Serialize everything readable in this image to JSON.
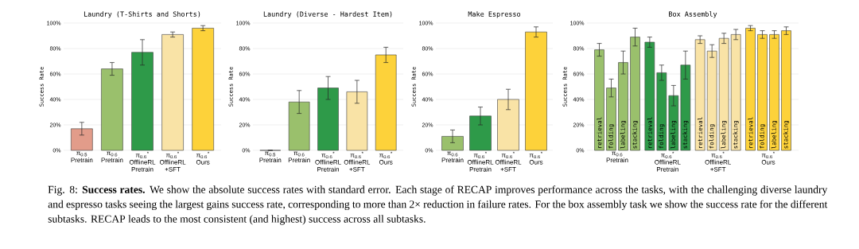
{
  "chart_data": [
    {
      "type": "bar",
      "title": "Laundry (T-Shirts and Shorts)",
      "ylabel": "Success Rate",
      "categories": [
        "π$_{0.5}$ Pretrain",
        "π$_{0.6}$ Pretrain",
        "π$_{0.6}$$^{*}$ OfflineRL Pretrain",
        "π$_{0.6}$$^{*}$ OfflineRL +SFT",
        "π$_{0.6}$$^{*}$ Ours"
      ],
      "values": [
        17,
        64,
        77,
        91,
        96
      ],
      "errors": [
        5,
        5,
        10,
        2,
        2
      ],
      "colors": [
        "#e29c8a",
        "#9ac06c",
        "#2e9a49",
        "#f9e3a6",
        "#fdd23a"
      ],
      "ylim": [
        0,
        100
      ],
      "yticks": [
        {
          "value": 0,
          "label": "0%"
        },
        {
          "value": 20,
          "label": "20%"
        },
        {
          "value": 40,
          "label": "40%"
        },
        {
          "value": 60,
          "label": "60%"
        },
        {
          "value": 80,
          "label": "80%"
        },
        {
          "value": 100,
          "label": "100%"
        }
      ],
      "grid": "y"
    },
    {
      "type": "bar",
      "title": "Laundry (Diverse - Hardest Item)",
      "ylabel": "Success Rate",
      "categories": [
        "π$_{0.5}$ Pretrain",
        "π$_{0.6}$ Pretrain",
        "π$_{0.6}$$^{*}$ OfflineRL Pretrain",
        "π$_{0.6}$$^{*}$ OfflineRL +SFT",
        "π$_{0.6}$$^{*}$ Ours"
      ],
      "values": [
        0,
        38,
        49,
        46,
        75
      ],
      "errors": [
        0,
        9,
        9,
        9,
        6
      ],
      "colors": [
        "#e29c8a",
        "#9ac06c",
        "#2e9a49",
        "#f9e3a6",
        "#fdd23a"
      ],
      "ylim": [
        0,
        100
      ],
      "yticks": [
        {
          "value": 0,
          "label": "0%"
        },
        {
          "value": 20,
          "label": "20%"
        },
        {
          "value": 40,
          "label": "40%"
        },
        {
          "value": 60,
          "label": "60%"
        },
        {
          "value": 80,
          "label": "80%"
        },
        {
          "value": 100,
          "label": "100%"
        }
      ],
      "grid": "y"
    },
    {
      "type": "bar",
      "title": "Make Espresso",
      "ylabel": "Success Rate",
      "categories": [
        "π$_{0.6}$ Pretrain",
        "π$_{0.6}$$^{*}$ OfflineRL Pretrain",
        "π$_{0.6}$$^{*}$ OfflineRL +SFT",
        "π$_{0.6}$$^{*}$ Ours"
      ],
      "values": [
        11,
        27,
        40,
        93
      ],
      "errors": [
        5,
        7,
        8,
        4
      ],
      "colors": [
        "#9ac06c",
        "#2e9a49",
        "#f9e3a6",
        "#fdd23a"
      ],
      "ylim": [
        0,
        100
      ],
      "yticks": [
        {
          "value": 0,
          "label": "0%"
        },
        {
          "value": 20,
          "label": "20%"
        },
        {
          "value": 40,
          "label": "40%"
        },
        {
          "value": 60,
          "label": "60%"
        },
        {
          "value": 80,
          "label": "80%"
        },
        {
          "value": 100,
          "label": "100%"
        }
      ],
      "grid": "y"
    },
    {
      "type": "bar",
      "title": "Box Assembly",
      "ylabel": "Success Rate",
      "categories": [
        "π$_{0.6}$ Pretrain",
        "π$_{0.6}$$^{*}$ OfflineRL Pretrain",
        "π$_{0.6}$$^{*}$ OfflineRL +SFT",
        "π$_{0.6}$$^{*}$ Ours"
      ],
      "series": [
        {
          "name": "retrieval",
          "colors": [
            "#9ac06c",
            "#2e9a49",
            "#f9e3a6",
            "#fdd23a"
          ],
          "values": [
            79,
            85,
            87,
            96
          ],
          "errors": [
            5,
            4,
            3,
            2
          ]
        },
        {
          "name": "folding",
          "colors": [
            "#9ac06c",
            "#2e9a49",
            "#f9e3a6",
            "#fdd23a"
          ],
          "values": [
            49,
            61,
            78,
            91
          ],
          "errors": [
            7,
            6,
            5,
            3
          ]
        },
        {
          "name": "labeling",
          "colors": [
            "#9ac06c",
            "#2e9a49",
            "#f9e3a6",
            "#fdd23a"
          ],
          "values": [
            69,
            43,
            88,
            91
          ],
          "errors": [
            9,
            8,
            4,
            3
          ]
        },
        {
          "name": "stacking",
          "colors": [
            "#9ac06c",
            "#2e9a49",
            "#f9e3a6",
            "#fdd23a"
          ],
          "values": [
            89,
            67,
            91,
            94
          ],
          "errors": [
            7,
            11,
            4,
            3
          ]
        }
      ],
      "ylim": [
        0,
        100
      ],
      "yticks": [
        {
          "value": 0,
          "label": "0%"
        },
        {
          "value": 20,
          "label": "20%"
        },
        {
          "value": 40,
          "label": "40%"
        },
        {
          "value": 60,
          "label": "60%"
        },
        {
          "value": 80,
          "label": "80%"
        },
        {
          "value": 100,
          "label": "100%"
        }
      ],
      "grid": "y",
      "annotations": [
        "Fig. 8: **Success rates.** We show the absolute success rates with standard error. Each stage of RECAP improves performance across the tasks, with the challenging diverse laundry and espresso tasks seeing the largest gains success rate, corresponding to more than 2× reduction in failure rates. For the box assembly task we show the success rate for the different subtasks. RECAP leads to the most consistent (and highest) success across all subtasks."
      ]
    }
  ]
}
